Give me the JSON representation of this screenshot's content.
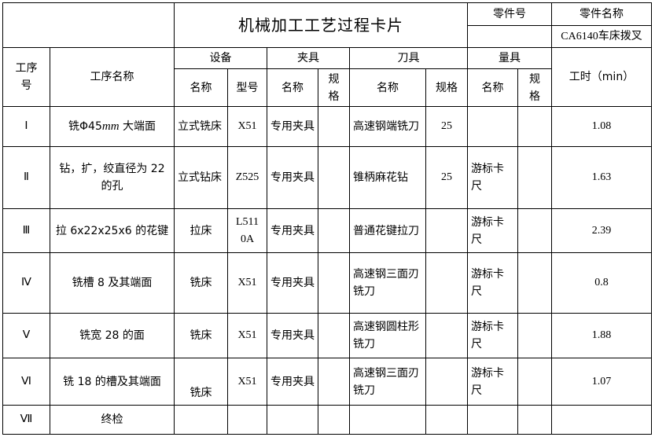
{
  "title": "机械加工工艺过程卡片",
  "part_no_label": "零件号",
  "part_no": "",
  "part_name_label": "零件名称",
  "part_name": "CA6140车床拨叉",
  "headers": {
    "step_no": "工序号",
    "step_name": "工序名称",
    "equipment": "设备",
    "fixture": "夹具",
    "tool": "刀具",
    "gauge": "量具",
    "name": "名称",
    "model": "型号",
    "spec": "规格",
    "time": "工时（min）"
  },
  "rows": [
    {
      "no": "Ⅰ",
      "name_pre": "铣Φ45",
      "name_unit": "mm",
      "name_post": " 大端面",
      "eq_name": "立式铣床",
      "eq_model": "X51",
      "fx_name": "专用夹具",
      "fx_spec": "",
      "tool_name": "高速钢端铣刀",
      "tool_spec": "25",
      "gauge_name": "",
      "gauge_spec": "",
      "time": "1.08"
    },
    {
      "no": "Ⅱ",
      "name": "钻，扩，绞直径为 22 的孔",
      "eq_name": "立式钻床",
      "eq_model": "Z525",
      "fx_name": "专用夹具",
      "fx_spec": "",
      "tool_name": "锥柄麻花钻",
      "tool_spec": "25",
      "gauge_name": "游标卡尺",
      "gauge_spec": "",
      "time": "1.63"
    },
    {
      "no": "Ⅲ",
      "name": "拉 6x22x25x6 的花键",
      "eq_name": "拉床",
      "eq_model": "L5110A",
      "fx_name": "专用夹具",
      "fx_spec": "",
      "tool_name": "普通花键拉刀",
      "tool_spec": "",
      "gauge_name": "游标卡尺",
      "gauge_spec": "",
      "time": "2.39"
    },
    {
      "no": "Ⅳ",
      "name": "铣槽 8 及其端面",
      "eq_name": "铣床",
      "eq_model": "X51",
      "fx_name": "专用夹具",
      "fx_spec": "",
      "tool_name": "高速钢三面刃铣刀",
      "tool_spec": "",
      "gauge_name": "游标卡尺",
      "gauge_spec": "",
      "time": "0.8"
    },
    {
      "no": "Ⅴ",
      "name": "铣宽 28 的面",
      "eq_name": "铣床",
      "eq_model": "X51",
      "fx_name": "专用夹具",
      "fx_spec": "",
      "tool_name": "高速钢圆柱形铣刀",
      "tool_spec": "",
      "gauge_name": "游标卡尺",
      "gauge_spec": "",
      "time": "1.88"
    },
    {
      "no": "Ⅵ",
      "name": "铣 18 的槽及其端面",
      "eq_name": "铣床",
      "eq_model": "X51",
      "fx_name": "专用夹具",
      "fx_spec": "",
      "tool_name": "高速钢三面刃铣刀",
      "tool_spec": "",
      "gauge_name": "游标卡尺",
      "gauge_spec": "",
      "time": "1.07"
    },
    {
      "no": "Ⅶ",
      "name": "终检",
      "eq_name": "",
      "eq_model": "",
      "fx_name": "",
      "fx_spec": "",
      "tool_name": "",
      "tool_spec": "",
      "gauge_name": "",
      "gauge_spec": "",
      "time": ""
    }
  ]
}
